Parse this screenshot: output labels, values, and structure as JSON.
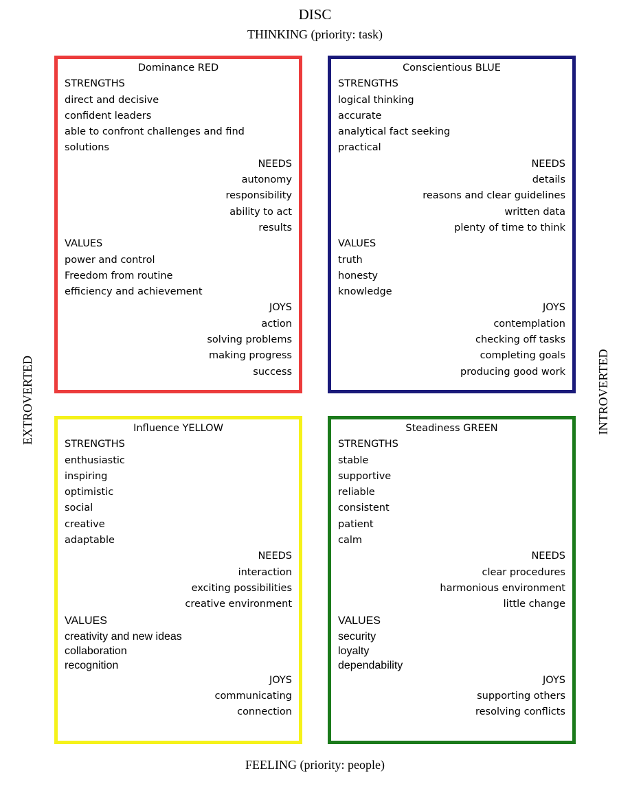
{
  "title": "DISC",
  "subtitle": "THINKING (priority: task)",
  "bottom_label": "FEELING (priority: people)",
  "left_label": "EXTROVERTED",
  "right_label": "INTROVERTED",
  "colors": {
    "red": "#ec3c3c",
    "blue": "#1a1a7a",
    "yellow": "#f5f21a",
    "green": "#1b7a1b"
  },
  "quadrants": {
    "red": {
      "title": "Dominance RED",
      "strengths_label": "STRENGTHS",
      "strengths": [
        "direct and decisive",
        "confident leaders",
        "able to confront challenges and find",
        "solutions"
      ],
      "needs_label": "NEEDS",
      "needs": [
        "autonomy",
        "responsibility",
        "ability to act",
        "results"
      ],
      "values_label": "VALUES",
      "values": [
        "power and control",
        "Freedom from routine",
        "efficiency and achievement"
      ],
      "joys_label": "JOYS",
      "joys": [
        "action",
        "solving problems",
        "making progress",
        "success"
      ]
    },
    "blue": {
      "title": "Conscientious BLUE",
      "strengths_label": "STRENGTHS",
      "strengths": [
        "logical thinking",
        "accurate",
        "analytical fact seeking",
        "practical"
      ],
      "needs_label": "NEEDS",
      "needs": [
        "details",
        "reasons and clear guidelines",
        "written data",
        "plenty of time to think"
      ],
      "values_label": "VALUES",
      "values": [
        "truth",
        "honesty",
        "knowledge"
      ],
      "joys_label": "JOYS",
      "joys": [
        "contemplation",
        "checking off tasks",
        "completing goals",
        "producing good work"
      ]
    },
    "yellow": {
      "title": "Influence YELLOW",
      "strengths_label": "STRENGTHS",
      "strengths": [
        "enthusiastic",
        "inspiring",
        "optimistic",
        "social",
        "creative",
        "adaptable"
      ],
      "needs_label": "NEEDS",
      "needs": [
        "interaction",
        "exciting possibilities",
        "creative environment"
      ],
      "values_label": "VALUES",
      "values": [
        "creativity and new ideas",
        "collaboration",
        "recognition"
      ],
      "joys_label": "JOYS",
      "joys": [
        "communicating",
        "connection"
      ]
    },
    "green": {
      "title": "Steadiness GREEN",
      "strengths_label": "STRENGTHS",
      "strengths": [
        "stable",
        "supportive",
        "reliable",
        "consistent",
        "patient",
        "calm"
      ],
      "needs_label": "NEEDS",
      "needs": [
        "clear procedures",
        "harmonious environment",
        "little change"
      ],
      "values_label": "VALUES",
      "values": [
        "security",
        "loyalty",
        "dependability"
      ],
      "joys_label": "JOYS",
      "joys": [
        "supporting others",
        "resolving conflicts"
      ]
    }
  }
}
